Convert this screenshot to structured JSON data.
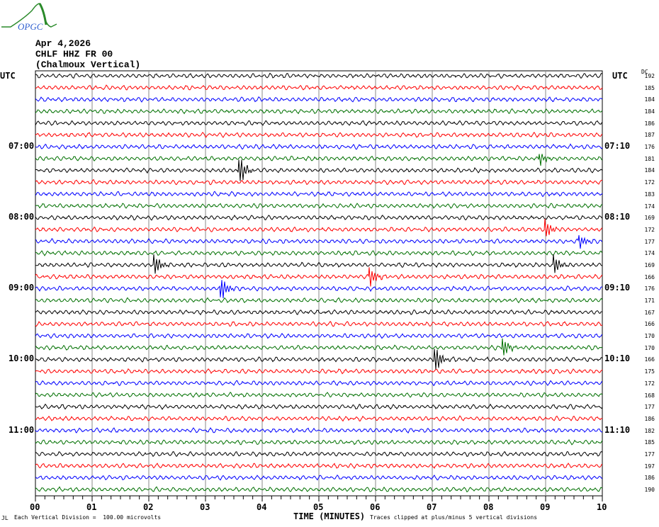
{
  "header": {
    "date": "Apr 4,2026",
    "station": "CHLF HHZ FR 00",
    "name": "(Chalmoux Vertical)",
    "logo_text": "OPGC"
  },
  "left_title": "UTC",
  "right_title": "UTC",
  "dc_title": "DC",
  "footer": {
    "scale_note": "Each Vertical Division =  100.00 microvolts",
    "xlabel": "TIME (MINUTES)",
    "clip_note": "Traces clipped at plus/minus 5 vertical divisions",
    "corner_mark": "JL"
  },
  "chart_data": {
    "type": "line",
    "title": "CHLF HHZ FR 00 (Chalmoux Vertical)",
    "xlabel": "TIME (MINUTES)",
    "xlim": [
      0,
      10
    ],
    "x_ticks": [
      "00",
      "01",
      "02",
      "03",
      "04",
      "05",
      "06",
      "07",
      "08",
      "09",
      "10"
    ],
    "trace_count": 36,
    "trace_colors": [
      "#000000",
      "#ff0000",
      "#0000ff",
      "#007000"
    ],
    "left_time_labels": [
      {
        "trace": 6,
        "label": "07:00"
      },
      {
        "trace": 12,
        "label": "08:00"
      },
      {
        "trace": 18,
        "label": "09:00"
      },
      {
        "trace": 24,
        "label": "10:00"
      },
      {
        "trace": 30,
        "label": "11:00"
      }
    ],
    "right_time_labels": [
      {
        "trace": 6,
        "label": "07:10"
      },
      {
        "trace": 12,
        "label": "08:10"
      },
      {
        "trace": 18,
        "label": "09:10"
      },
      {
        "trace": 24,
        "label": "10:10"
      },
      {
        "trace": 30,
        "label": "11:10"
      }
    ],
    "dc_offsets": [
      192,
      185,
      184,
      184,
      186,
      187,
      176,
      181,
      184,
      172,
      183,
      174,
      169,
      172,
      177,
      174,
      169,
      166,
      176,
      171,
      167,
      166,
      170,
      170,
      166,
      175,
      172,
      168,
      177,
      186,
      182,
      185,
      177,
      197,
      186,
      190
    ],
    "events": [
      {
        "trace": 8,
        "minute": 3.6,
        "amplitude": 3.0
      },
      {
        "trace": 7,
        "minute": 8.9,
        "amplitude": 1.2
      },
      {
        "trace": 13,
        "minute": 9.0,
        "amplitude": 1.8
      },
      {
        "trace": 14,
        "minute": 9.6,
        "amplitude": 1.2
      },
      {
        "trace": 16,
        "minute": 2.1,
        "amplitude": 2.0
      },
      {
        "trace": 16,
        "minute": 9.15,
        "amplitude": 1.8
      },
      {
        "trace": 17,
        "minute": 5.9,
        "amplitude": 1.8
      },
      {
        "trace": 18,
        "minute": 3.3,
        "amplitude": 1.8
      },
      {
        "trace": 23,
        "minute": 8.25,
        "amplitude": 1.8
      },
      {
        "trace": 24,
        "minute": 7.05,
        "amplitude": 2.5
      }
    ]
  }
}
